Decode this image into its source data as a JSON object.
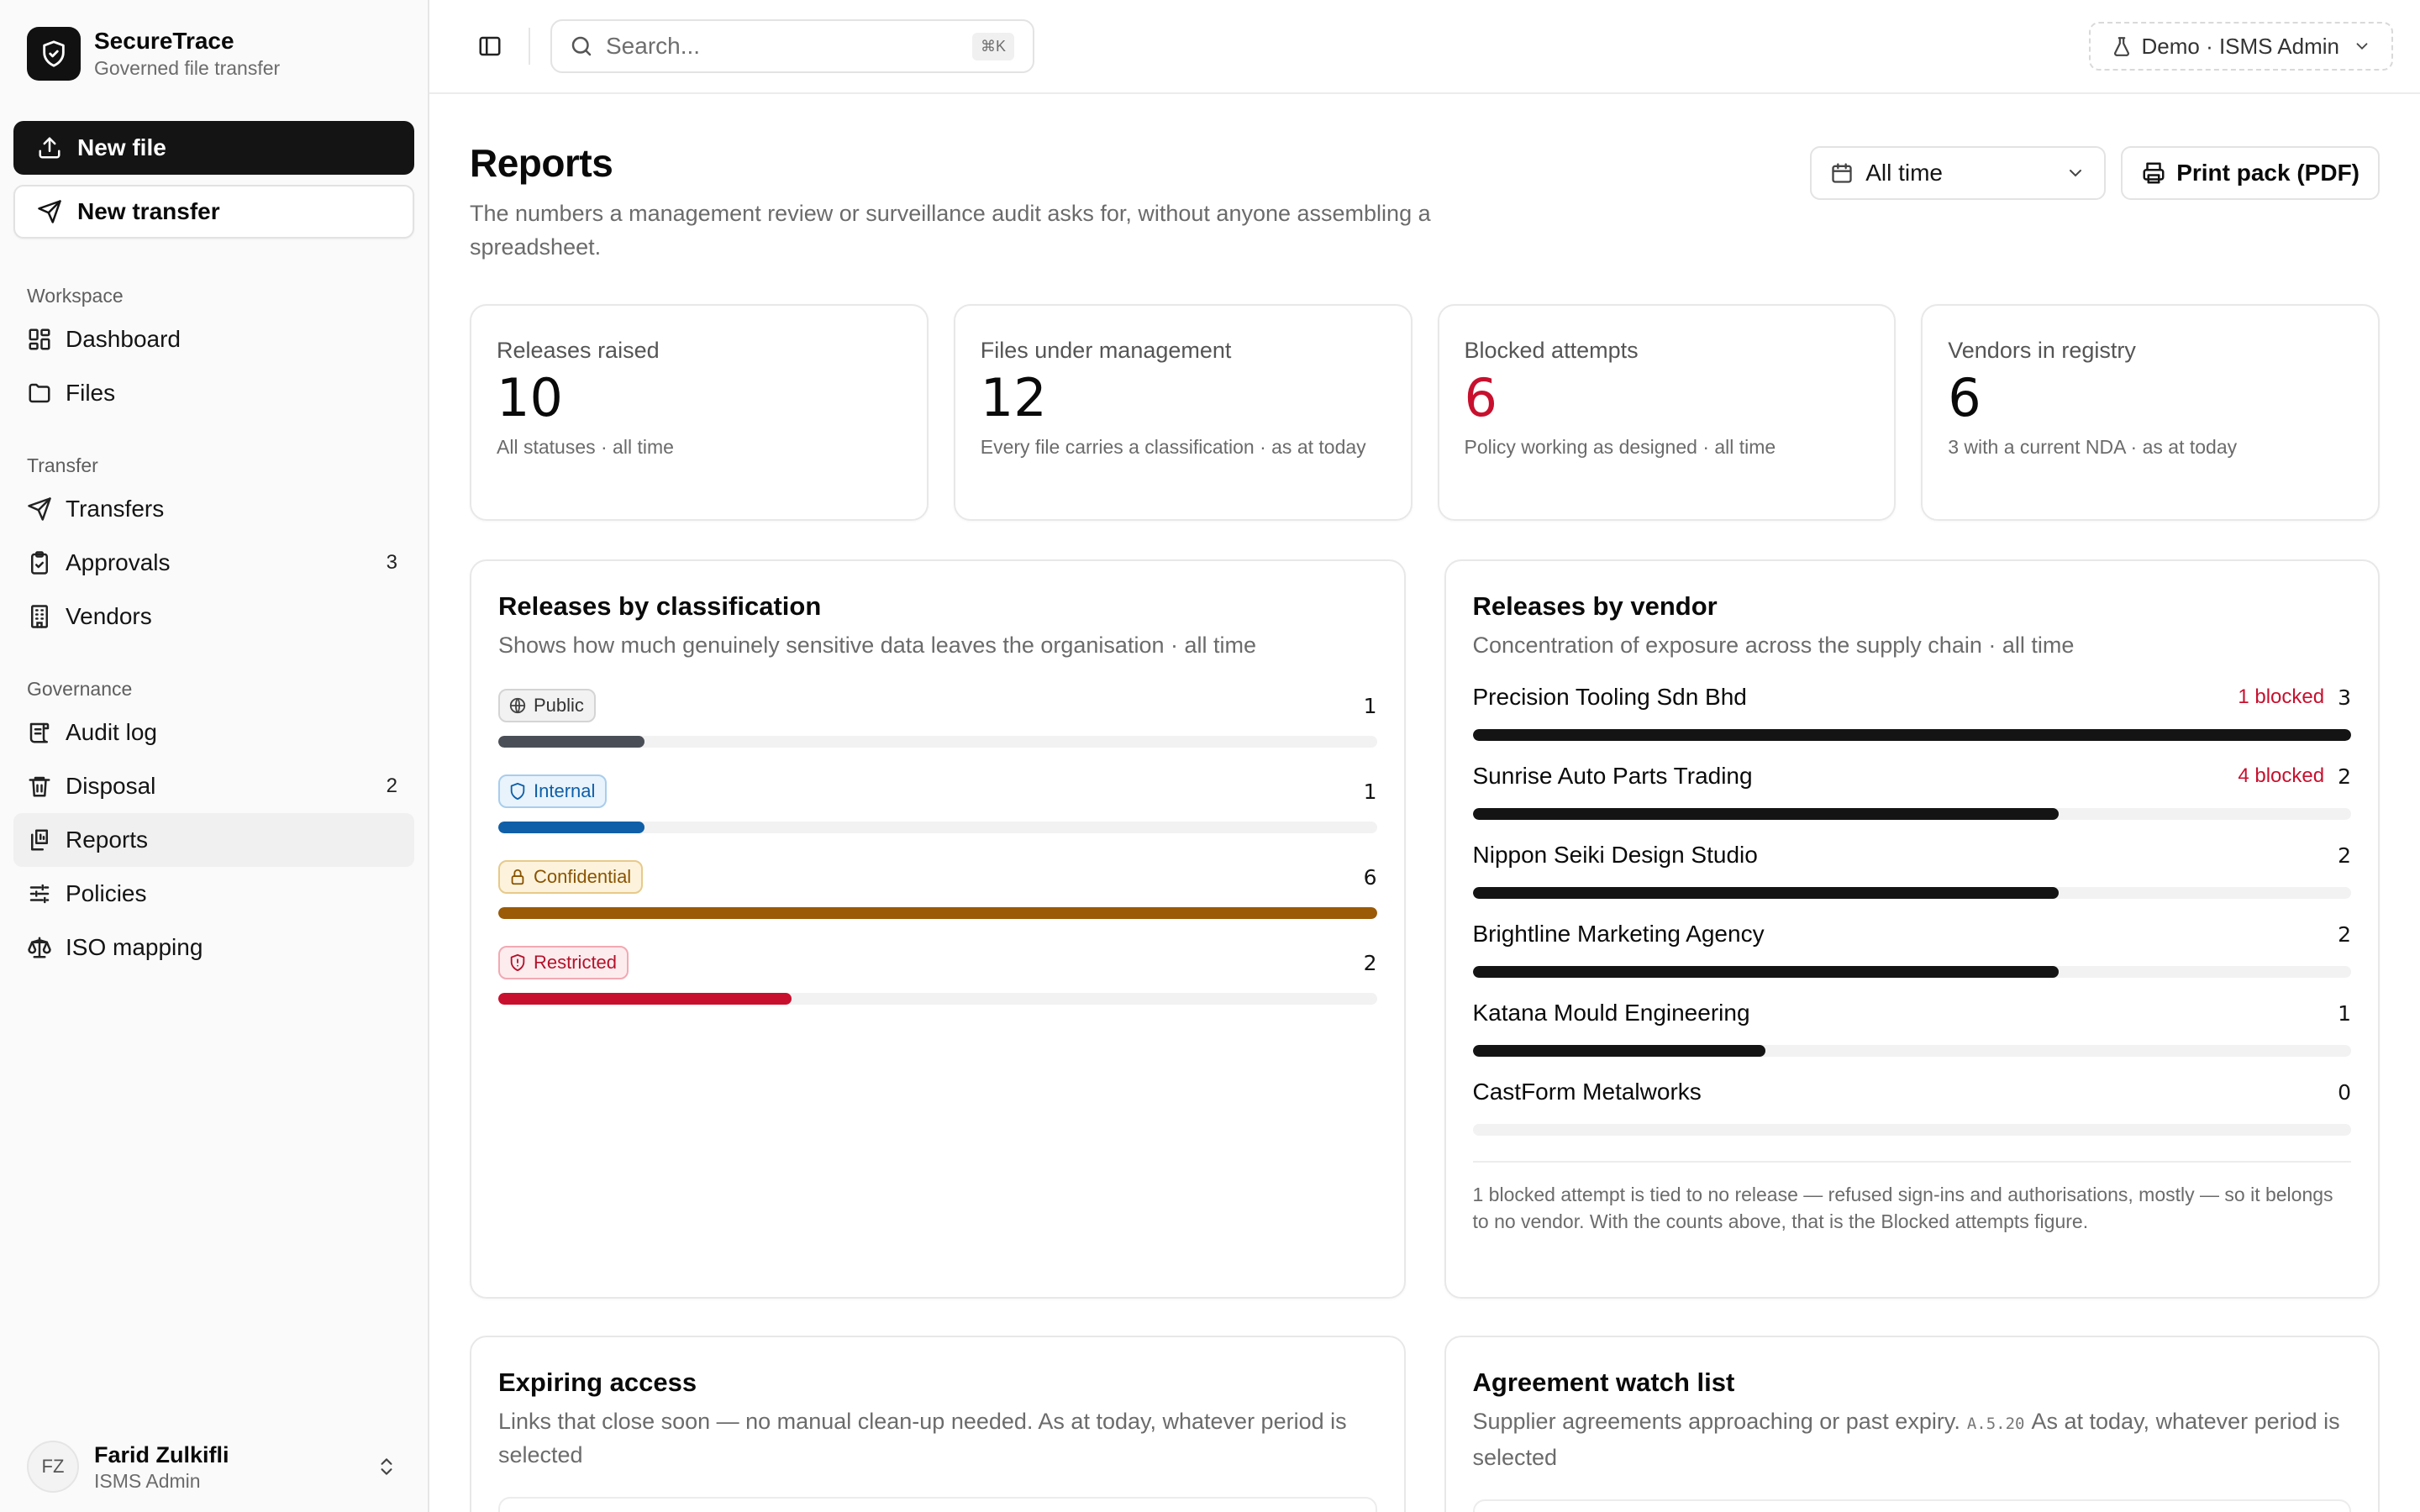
{
  "brand": {
    "name": "SecureTrace",
    "subtitle": "Governed file transfer"
  },
  "sidebar": {
    "new_file": "New file",
    "new_transfer": "New transfer",
    "sections": [
      {
        "label": "Workspace",
        "items": [
          {
            "label": "Dashboard"
          },
          {
            "label": "Files"
          }
        ]
      },
      {
        "label": "Transfer",
        "items": [
          {
            "label": "Transfers"
          },
          {
            "label": "Approvals",
            "count": "3"
          },
          {
            "label": "Vendors"
          }
        ]
      },
      {
        "label": "Governance",
        "items": [
          {
            "label": "Audit log"
          },
          {
            "label": "Disposal",
            "count": "2"
          },
          {
            "label": "Reports"
          },
          {
            "label": "Policies"
          },
          {
            "label": "ISO mapping"
          }
        ]
      }
    ],
    "user": {
      "initials": "FZ",
      "name": "Farid Zulkifli",
      "role": "ISMS Admin"
    }
  },
  "topbar": {
    "search_placeholder": "Search...",
    "search_shortcut": "⌘K",
    "account": "Demo · ISMS Admin"
  },
  "page": {
    "title": "Reports",
    "description": "The numbers a management review or surveillance audit asks for, without anyone assembling a spreadsheet.",
    "period": "All time",
    "print_label": "Print pack (PDF)"
  },
  "stats": [
    {
      "label": "Releases raised",
      "value": "10",
      "note": "All statuses · all time"
    },
    {
      "label": "Files under management",
      "value": "12",
      "note": "Every file carries a classification · as at today"
    },
    {
      "label": "Blocked attempts",
      "value": "6",
      "note": "Policy working as designed · all time"
    },
    {
      "label": "Vendors in registry",
      "value": "6",
      "note": "3 with a current NDA · as at today"
    }
  ],
  "classification": {
    "title": "Releases by classification",
    "description": "Shows how much genuinely sensitive data leaves the organisation · all time",
    "max": 6,
    "rows": [
      {
        "label": "Public",
        "value": 1,
        "color": "#4a4f57"
      },
      {
        "label": "Internal",
        "value": 1,
        "color": "#0f5fa8"
      },
      {
        "label": "Confidential",
        "value": 6,
        "color": "#9a5a06"
      },
      {
        "label": "Restricted",
        "value": 2,
        "color": "#c8102e"
      }
    ]
  },
  "vendors": {
    "title": "Releases by vendor",
    "description": "Concentration of exposure across the supply chain · all time",
    "max": 3,
    "rows": [
      {
        "name": "Precision Tooling Sdn Bhd",
        "blocked": "1 blocked",
        "value": 3
      },
      {
        "name": "Sunrise Auto Parts Trading",
        "blocked": "4 blocked",
        "value": 2
      },
      {
        "name": "Nippon Seiki Design Studio",
        "blocked": "",
        "value": 2
      },
      {
        "name": "Brightline Marketing Agency",
        "blocked": "",
        "value": 2
      },
      {
        "name": "Katana Mould Engineering",
        "blocked": "",
        "value": 1
      },
      {
        "name": "CastForm Metalworks",
        "blocked": "",
        "value": 0
      }
    ],
    "footnote": "1 blocked attempt is tied to no release — refused sign-ins and authorisations, mostly — so it belongs to no vendor. With the counts above, that is the Blocked attempts figure."
  },
  "expiring": {
    "title": "Expiring access",
    "description": "Links that close soon — no manual clean-up needed. As at today, whatever period is selected"
  },
  "agreements": {
    "title": "Agreement watch list",
    "description_a": "Supplier agreements approaching or past expiry.",
    "control": "A.5.20",
    "description_b": "As at today, whatever period is selected"
  }
}
